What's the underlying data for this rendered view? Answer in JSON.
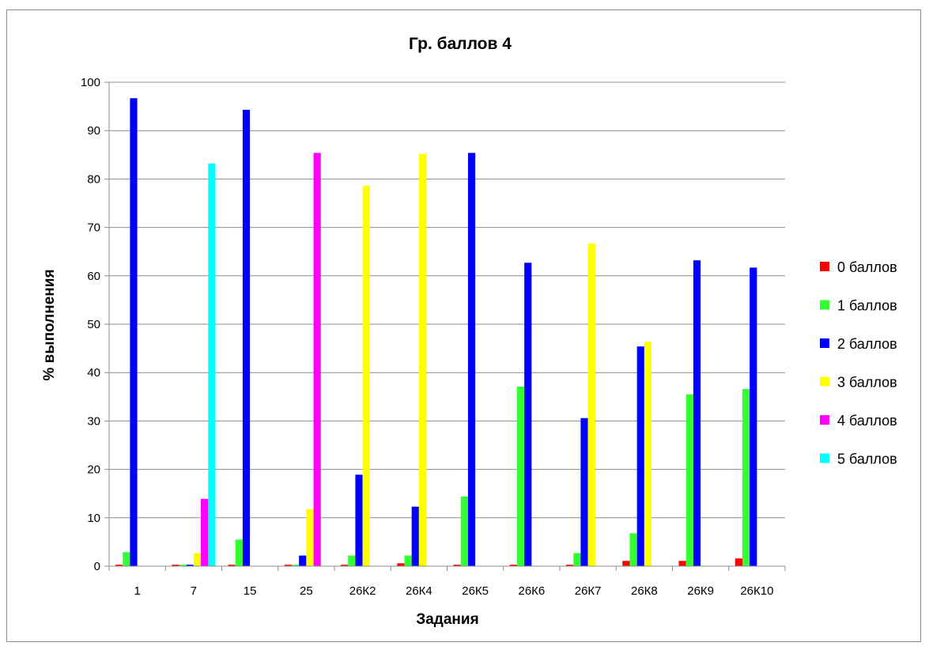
{
  "chart_data": {
    "type": "bar",
    "title": "Гр. баллов 4",
    "xlabel": "Задания",
    "ylabel": "% выполнения",
    "ylim": [
      0,
      100
    ],
    "yticks": [
      0,
      10,
      20,
      30,
      40,
      50,
      60,
      70,
      80,
      90,
      100
    ],
    "grid": true,
    "legend_position": "right",
    "categories": [
      "1",
      "7",
      "15",
      "25",
      "26К2",
      "26К4",
      "26К5",
      "26К6",
      "26К7",
      "26К8",
      "26К9",
      "26К10"
    ],
    "series": [
      {
        "name": "0 баллов",
        "color": "#ff0000",
        "values": [
          0.3,
          0.3,
          0.3,
          0.3,
          0.3,
          0.6,
          0.3,
          0.3,
          0.3,
          1.1,
          1.1,
          1.6
        ]
      },
      {
        "name": "1 баллов",
        "color": "#33ff33",
        "values": [
          2.9,
          0.3,
          5.5,
          0.3,
          2.2,
          2.2,
          14.4,
          37.1,
          2.7,
          6.8,
          35.5,
          36.6
        ]
      },
      {
        "name": "2 баллов",
        "color": "#0000ff",
        "values": [
          96.7,
          0.3,
          94.3,
          2.2,
          18.9,
          12.3,
          85.4,
          62.7,
          30.6,
          45.4,
          63.2,
          61.7
        ]
      },
      {
        "name": "3 баллов",
        "color": "#ffff00",
        "values": [
          0,
          2.7,
          0,
          11.8,
          78.6,
          85.2,
          0,
          0,
          66.7,
          46.4,
          0,
          0
        ]
      },
      {
        "name": "4 баллов",
        "color": "#ff00ff",
        "values": [
          0,
          13.9,
          0,
          85.4,
          0,
          0,
          0,
          0,
          0,
          0,
          0,
          0
        ]
      },
      {
        "name": "5 баллов",
        "color": "#00ffff",
        "values": [
          0,
          83.2,
          0,
          0,
          0,
          0,
          0,
          0,
          0,
          0,
          0,
          0
        ]
      }
    ]
  }
}
